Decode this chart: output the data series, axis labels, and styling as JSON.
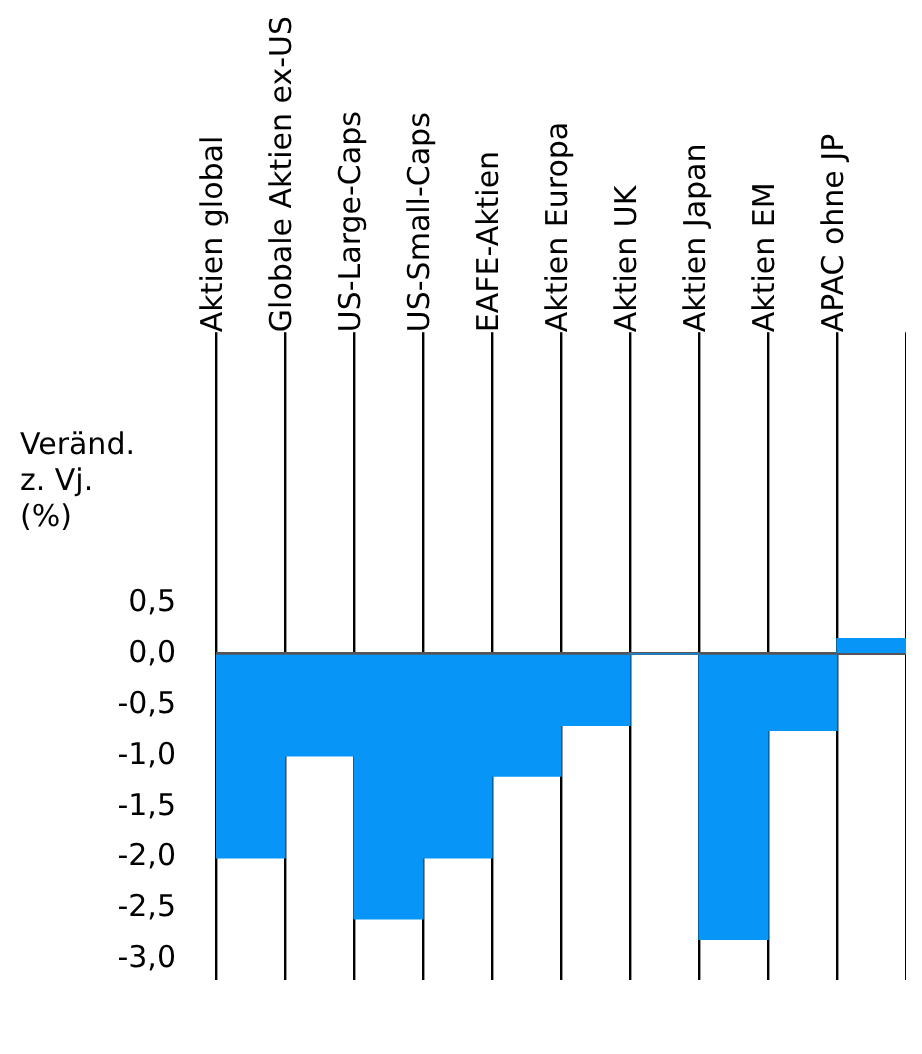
{
  "chart_data": {
    "type": "bar",
    "ylabel": "Veränd.\nz. Vj.\n(%)",
    "categories": [
      "Aktien global",
      "Globale Aktien ex-US",
      "US-Large-Caps",
      "US-Small-Caps",
      "EAFE-Aktien",
      "Aktien Europa",
      "Aktien UK",
      "Aktien Japan",
      "Aktien EM",
      "APAC ohne JP"
    ],
    "values": [
      -2.0,
      -1.0,
      -2.6,
      -2.0,
      -1.2,
      -0.7,
      0.0,
      -2.8,
      -0.75,
      0.15
    ],
    "color": "#0796f8",
    "ylim": [
      -3.2,
      3.0
    ],
    "yticks": [
      {
        "value": 0.5,
        "label": "0,5"
      },
      {
        "value": 0,
        "label": "0,0"
      },
      {
        "value": -0.5,
        "label": "-0,5"
      },
      {
        "value": -1,
        "label": "-1,0"
      },
      {
        "value": -1.5,
        "label": "-1,5"
      },
      {
        "value": -2,
        "label": "-2,0"
      },
      {
        "value": -2.5,
        "label": "-2,5"
      },
      {
        "value": -3,
        "label": "-3,0"
      }
    ],
    "grid": "x",
    "legend": false
  }
}
